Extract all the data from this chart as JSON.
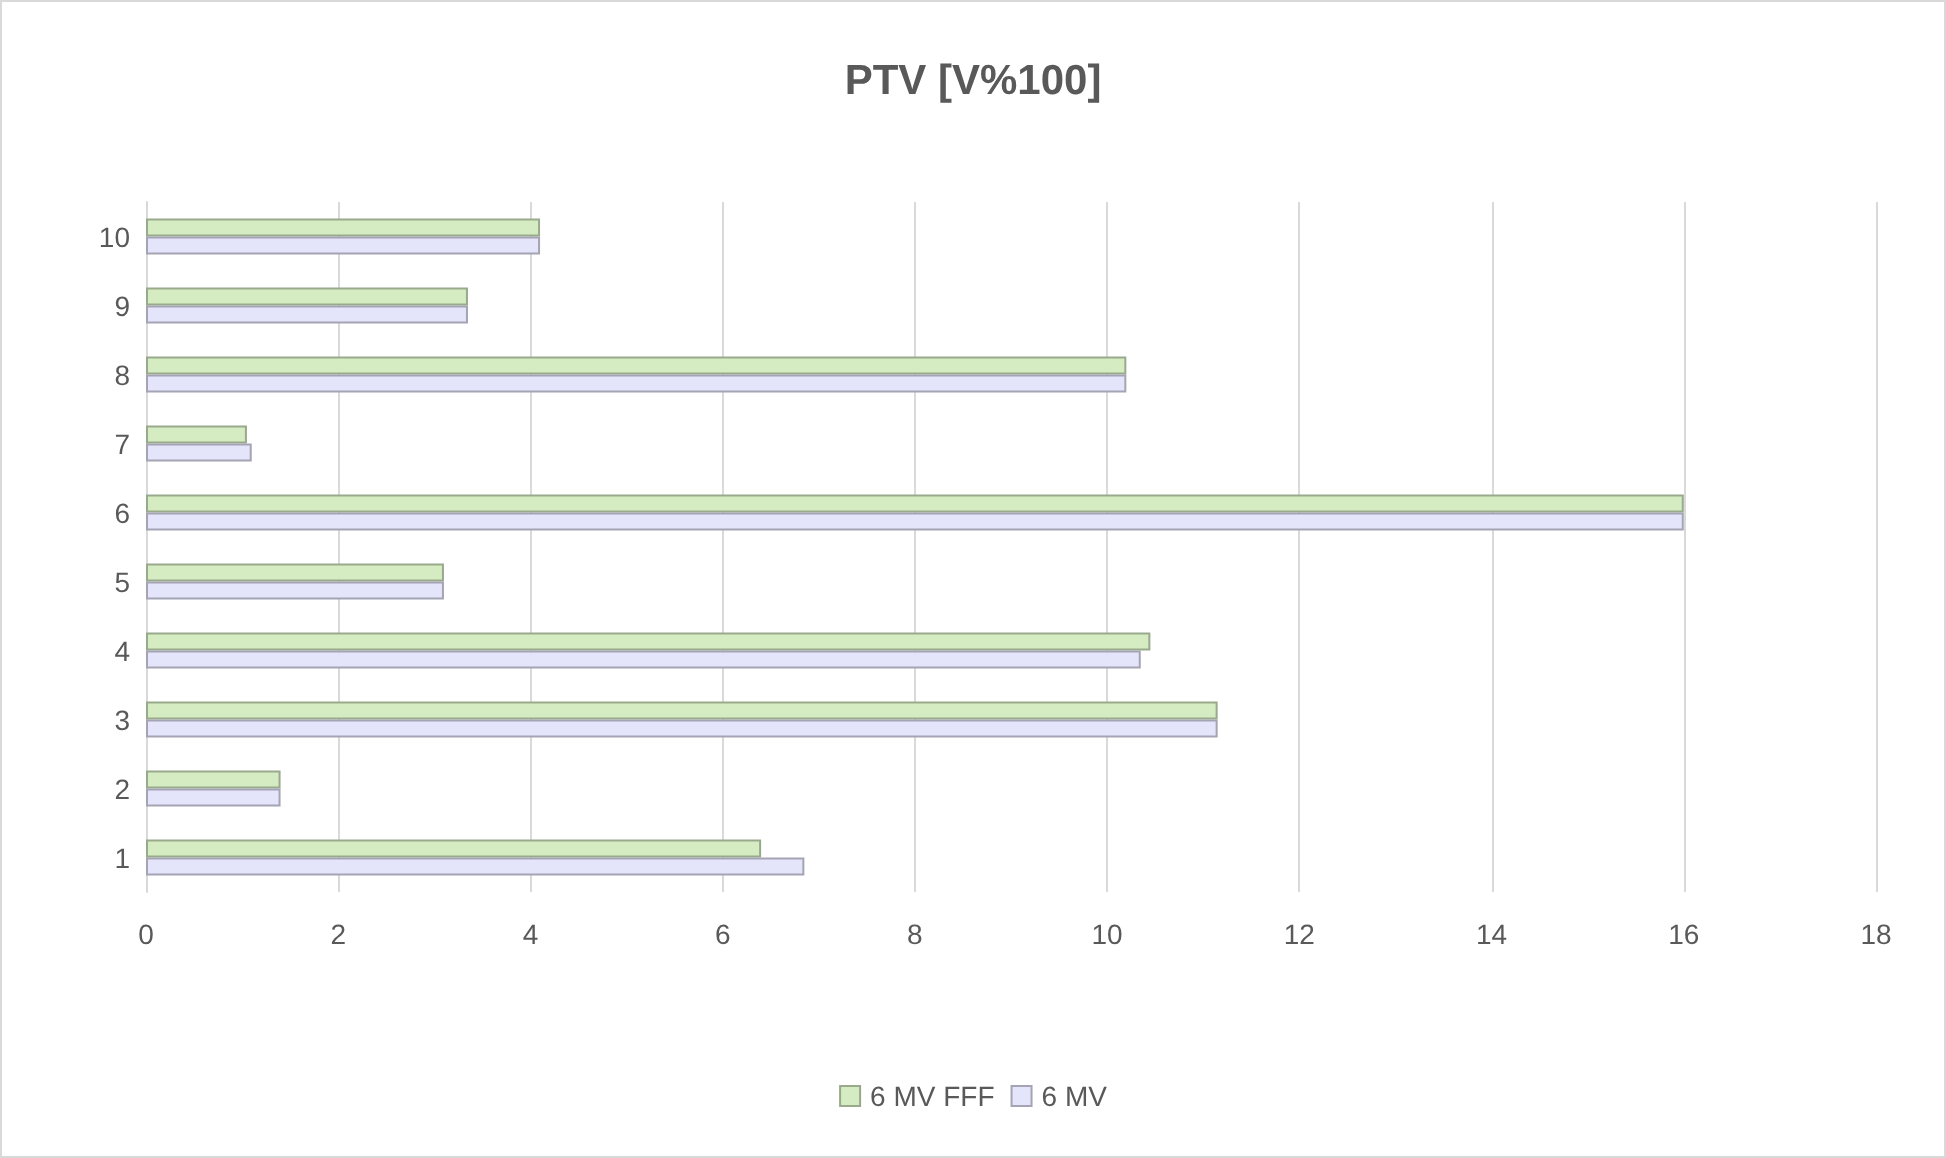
{
  "chart_data": {
    "type": "bar",
    "orientation": "horizontal",
    "title": "PTV [V%100]",
    "categories": [
      "10",
      "9",
      "8",
      "7",
      "6",
      "5",
      "4",
      "3",
      "2",
      "1"
    ],
    "series": [
      {
        "name": "6 MV FFF",
        "color": "#d5ecc2",
        "values": [
          4.1,
          3.35,
          10.2,
          1.05,
          16.0,
          3.1,
          10.45,
          11.15,
          1.4,
          6.4
        ]
      },
      {
        "name": "6 MV",
        "color": "#e4e4fa",
        "values": [
          4.1,
          3.35,
          10.2,
          1.1,
          16.0,
          3.1,
          10.35,
          11.15,
          1.4,
          6.85
        ]
      }
    ],
    "xlim": [
      0,
      18
    ],
    "xticks": [
      0,
      2,
      4,
      6,
      8,
      10,
      12,
      14,
      16,
      18
    ],
    "grid": "x",
    "legend": "bottom"
  }
}
